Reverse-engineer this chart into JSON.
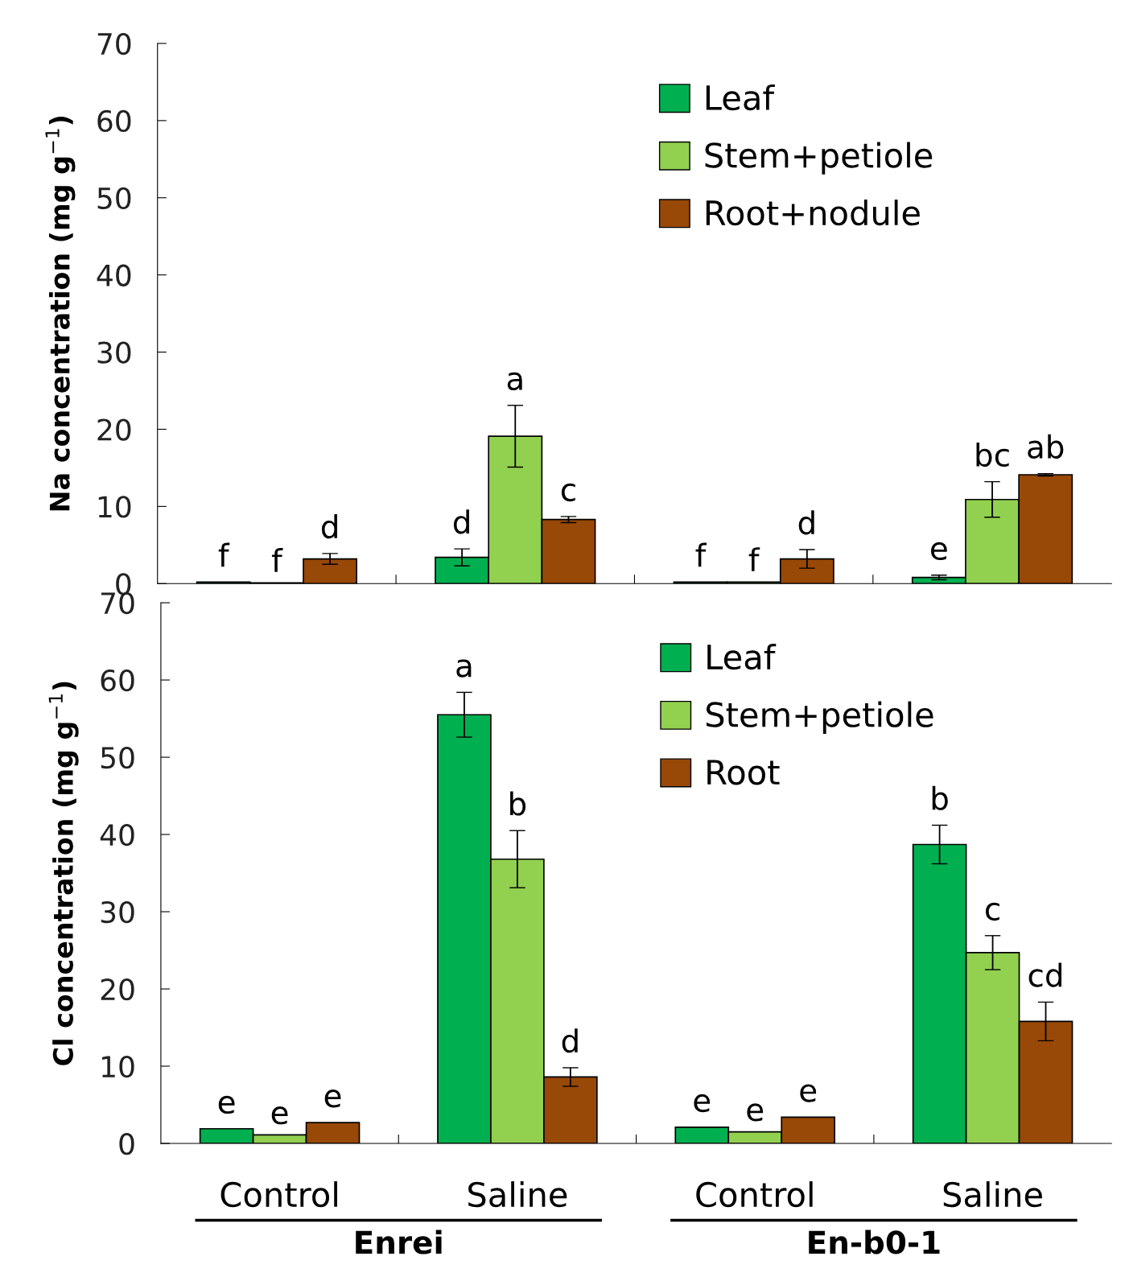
{
  "chart_data": [
    {
      "type": "bar",
      "ylabel": "Na concentration (mg g$^{−1}$)",
      "categories": [
        null,
        null,
        null,
        null
      ],
      "ylim": [
        0,
        70
      ],
      "yticks": [
        0,
        10,
        20,
        30,
        40,
        50,
        60,
        70
      ],
      "legend": "top",
      "grid": false,
      "series": [
        {
          "name": "Leaf",
          "color": "#00b050",
          "values": [
            0.2,
            3.4,
            0.2,
            0.8
          ],
          "errors": [
            null,
            1.1,
            null,
            0.3
          ]
        },
        {
          "name": "Stem+petiole",
          "color": "#92d050",
          "values": [
            0.1,
            19.1,
            0.2,
            10.9
          ],
          "errors": [
            null,
            4.0,
            null,
            2.3
          ]
        },
        {
          "name": "Root+nodule",
          "color": "#984807",
          "values": [
            3.2,
            8.3,
            3.2,
            14.1
          ],
          "errors": [
            0.7,
            0.4,
            1.2,
            0.15
          ]
        }
      ],
      "annotations": [
        "f",
        "d",
        "f",
        "e",
        "f",
        "a",
        "f",
        "bc",
        "d",
        "c",
        "d",
        "ab"
      ]
    },
    {
      "type": "bar",
      "ylabel": "Cl concentration (mg g$^{−1}$)",
      "categories": [
        "Control",
        "Saline",
        "Control",
        "Saline"
      ],
      "ylim": [
        0,
        70
      ],
      "yticks": [
        0,
        10,
        20,
        30,
        40,
        50,
        60,
        70
      ],
      "legend": "top",
      "grid": false,
      "series": [
        {
          "name": "Leaf",
          "color": "#00b050",
          "values": [
            1.9,
            55.5,
            2.1,
            38.7
          ],
          "errors": [
            null,
            2.9,
            null,
            2.5
          ]
        },
        {
          "name": "Stem+petiole",
          "color": "#92d050",
          "values": [
            1.1,
            36.8,
            1.5,
            24.7
          ],
          "errors": [
            null,
            3.7,
            null,
            2.2
          ]
        },
        {
          "name": "Root",
          "color": "#984807",
          "values": [
            2.7,
            8.6,
            3.4,
            15.8
          ],
          "errors": [
            null,
            1.2,
            null,
            2.5
          ]
        }
      ],
      "annotations": [
        "e",
        "a",
        "e",
        "b",
        "e",
        "b",
        "e",
        "c",
        "e",
        "d",
        "e",
        "cd",
        "Enrei",
        "En-b0-1"
      ]
    }
  ]
}
